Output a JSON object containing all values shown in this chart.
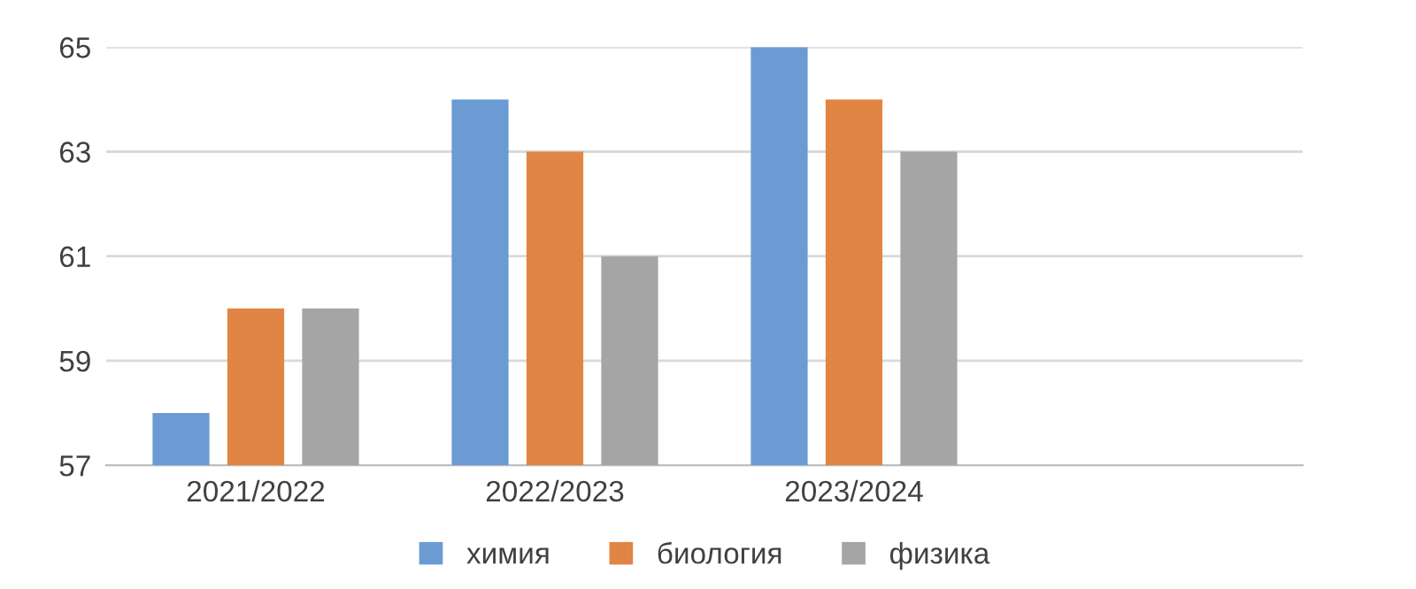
{
  "chart_data": {
    "type": "bar",
    "categories": [
      "2021/2022",
      "2022/2023",
      "2023/2024",
      null
    ],
    "series": [
      {
        "name": "химия",
        "color": "#6b9bd2",
        "values": [
          58,
          64,
          65,
          null
        ]
      },
      {
        "name": "биология",
        "color": "#e08543",
        "values": [
          60,
          63,
          64,
          null
        ]
      },
      {
        "name": "физика",
        "color": "#a5a5a5",
        "values": [
          60,
          61,
          63,
          null
        ]
      }
    ],
    "ylim": [
      57,
      65
    ],
    "yticks": [
      57,
      59,
      61,
      63,
      65
    ],
    "grid": "y",
    "legend": "bottom"
  }
}
